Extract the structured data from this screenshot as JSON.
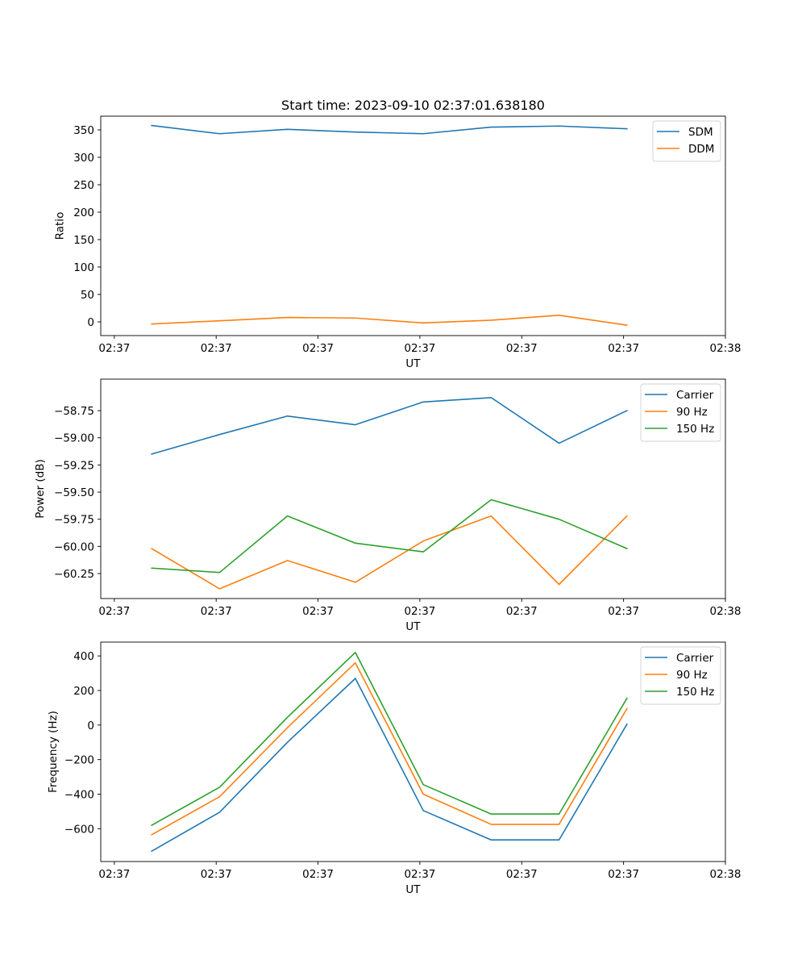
{
  "chart_data": [
    {
      "type": "line",
      "title": "Start time: 2023-09-10 02:37:01.638180",
      "xlabel": "UT",
      "ylabel": "Ratio",
      "x": [
        0,
        1,
        2,
        3,
        4,
        5,
        6,
        7
      ],
      "xlim": [
        -0.75,
        8.45
      ],
      "xticks": [
        -0.55,
        0.95,
        2.45,
        3.95,
        5.45,
        6.95,
        8.45
      ],
      "xtick_labels": [
        "02:37",
        "02:37",
        "02:37",
        "02:37",
        "02:37",
        "02:37",
        "02:38"
      ],
      "ylim": [
        -25,
        375
      ],
      "yticks": [
        0,
        50,
        100,
        150,
        200,
        250,
        300,
        350
      ],
      "ytick_labels": [
        "0",
        "50",
        "100",
        "150",
        "200",
        "250",
        "300",
        "350"
      ],
      "legend_position": "top-right",
      "series": [
        {
          "name": "SDM",
          "color": "#1f77b4",
          "values": [
            358,
            343,
            351,
            346,
            343,
            355,
            357,
            352
          ]
        },
        {
          "name": "DDM",
          "color": "#ff7f0e",
          "values": [
            -4,
            2,
            8,
            7,
            -2,
            3,
            12,
            -6
          ]
        }
      ]
    },
    {
      "type": "line",
      "title": "",
      "xlabel": "UT",
      "ylabel": "Power (dB)",
      "x": [
        0,
        1,
        2,
        3,
        4,
        5,
        6,
        7
      ],
      "xlim": [
        -0.75,
        8.45
      ],
      "xticks": [
        -0.55,
        0.95,
        2.45,
        3.95,
        5.45,
        6.95,
        8.45
      ],
      "xtick_labels": [
        "02:37",
        "02:37",
        "02:37",
        "02:37",
        "02:37",
        "02:37",
        "02:38"
      ],
      "ylim": [
        -60.48,
        -58.46
      ],
      "yticks": [
        -60.25,
        -60.0,
        -59.75,
        -59.5,
        -59.25,
        -59.0,
        -58.75
      ],
      "ytick_labels": [
        "−60.25",
        "−60.00",
        "−59.75",
        "−59.50",
        "−59.25",
        "−59.00",
        "−58.75"
      ],
      "legend_position": "top-right",
      "series": [
        {
          "name": "Carrier",
          "color": "#1f77b4",
          "values": [
            -59.15,
            -58.97,
            -58.8,
            -58.88,
            -58.67,
            -58.63,
            -59.05,
            -58.75
          ]
        },
        {
          "name": "90 Hz",
          "color": "#ff7f0e",
          "values": [
            -60.02,
            -60.39,
            -60.13,
            -60.33,
            -59.95,
            -59.72,
            -60.35,
            -59.72
          ]
        },
        {
          "name": "150 Hz",
          "color": "#2ca02c",
          "values": [
            -60.2,
            -60.24,
            -59.72,
            -59.97,
            -60.05,
            -59.57,
            -59.75,
            -60.02
          ]
        }
      ]
    },
    {
      "type": "line",
      "title": "",
      "xlabel": "UT",
      "ylabel": "Frequency (Hz)",
      "x": [
        0,
        1,
        2,
        3,
        4,
        5,
        6,
        7
      ],
      "xlim": [
        -0.75,
        8.45
      ],
      "xticks": [
        -0.55,
        0.95,
        2.45,
        3.95,
        5.45,
        6.95,
        8.45
      ],
      "xtick_labels": [
        "02:37",
        "02:37",
        "02:37",
        "02:37",
        "02:37",
        "02:37",
        "02:38"
      ],
      "ylim": [
        -790,
        480
      ],
      "yticks": [
        -600,
        -400,
        -200,
        0,
        200,
        400
      ],
      "ytick_labels": [
        "−600",
        "−400",
        "−200",
        "0",
        "200",
        "400"
      ],
      "legend_position": "top-right",
      "series": [
        {
          "name": "Carrier",
          "color": "#1f77b4",
          "values": [
            -730,
            -505,
            -100,
            270,
            -495,
            -665,
            -665,
            5
          ]
        },
        {
          "name": "90 Hz",
          "color": "#ff7f0e",
          "values": [
            -635,
            -415,
            -15,
            360,
            -400,
            -575,
            -575,
            95
          ]
        },
        {
          "name": "150 Hz",
          "color": "#2ca02c",
          "values": [
            -580,
            -360,
            45,
            420,
            -345,
            -515,
            -515,
            155
          ]
        }
      ]
    }
  ]
}
